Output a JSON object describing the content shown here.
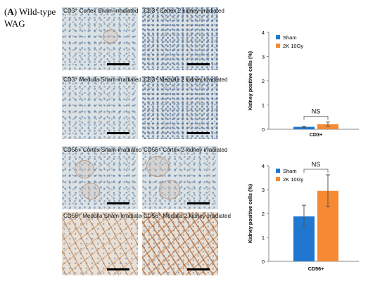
{
  "figure": {
    "panel_letter": "A",
    "panel_label_rest": ") Wild-type WAG"
  },
  "micrographs": [
    {
      "caption": "CD3⁺ Cortex Sham-irradiated"
    },
    {
      "caption": "CD3⁺ Cortex 2 kidney irradiated"
    },
    {
      "caption": "CD3⁺ Medulla Sham-irradiated"
    },
    {
      "caption": "CD3⁺ Medulla 2 kidney irradiated"
    },
    {
      "caption": "CD56+ Cortex Sham-irradiated"
    },
    {
      "caption": "CD56⁺ Cortex 2 kidney irradiated"
    },
    {
      "caption": "CD56⁺ Medulla Sham-irradiated"
    },
    {
      "caption": "CD56⁺ Medulla 2 kidney irradiated"
    }
  ],
  "chart_data": [
    {
      "type": "bar",
      "categories": [
        "CD3+"
      ],
      "series": [
        {
          "name": "Sham",
          "values": [
            0.1
          ],
          "error": [
            0.03
          ],
          "color": "#1f77d0"
        },
        {
          "name": "2K 10Gy",
          "values": [
            0.21
          ],
          "error": [
            0.09
          ],
          "color": "#f58a33"
        }
      ],
      "xlabel": "CD3+",
      "ylabel": "Kidney positive cells (%)",
      "ylim": [
        0,
        4
      ],
      "yticks": [
        "0",
        "1",
        "2",
        "3",
        "4"
      ],
      "annotation": "NS",
      "legend": "top-left",
      "grid": false
    },
    {
      "type": "bar",
      "categories": [
        "CD56+"
      ],
      "series": [
        {
          "name": "Sham",
          "values": [
            1.88
          ],
          "error": [
            0.47
          ],
          "color": "#1f77d0"
        },
        {
          "name": "2K 10Gy",
          "values": [
            2.95
          ],
          "error": [
            0.67
          ],
          "color": "#f58a33"
        }
      ],
      "xlabel": "CD56+",
      "ylabel": "Kidney positive cells (%)",
      "ylim": [
        0,
        4
      ],
      "yticks": [
        "0",
        "1",
        "2",
        "3",
        "4"
      ],
      "annotation": "NS",
      "legend": "top-left",
      "grid": false
    }
  ]
}
